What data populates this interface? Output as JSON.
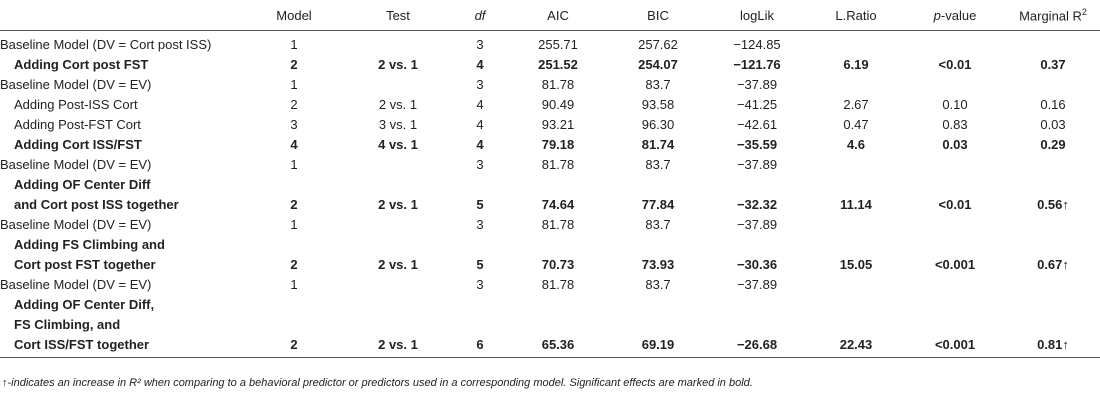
{
  "header": {
    "col1": "",
    "model": "Model",
    "test": "Test",
    "df": "df",
    "aic": "AIC",
    "bic": "BIC",
    "loglik": "logLik",
    "lratio": "L.Ratio",
    "pvalue_p": "p",
    "pvalue_rest": "-value",
    "marginal": "Marginal R",
    "marginal_sup": "2"
  },
  "rows": [
    {
      "label": [
        "Baseline Model (DV = Cort post ISS)"
      ],
      "model": "1",
      "test": "",
      "df": "3",
      "aic": "255.71",
      "bic": "257.62",
      "loglik": "−124.85",
      "lratio": "",
      "p": "",
      "r2": "",
      "bold": false,
      "indent": false
    },
    {
      "label": [
        "Adding Cort post FST"
      ],
      "model": "2",
      "test": "2 vs. 1",
      "df": "4",
      "aic": "251.52",
      "bic": "254.07",
      "loglik": "−121.76",
      "lratio": "6.19",
      "p": "<0.01",
      "r2": "0.37",
      "bold": true,
      "indent": true
    },
    {
      "label": [
        "Baseline Model (DV = EV)"
      ],
      "model": "1",
      "test": "",
      "df": "3",
      "aic": "81.78",
      "bic": "83.7",
      "loglik": "−37.89",
      "lratio": "",
      "p": "",
      "r2": "",
      "bold": false,
      "indent": false
    },
    {
      "label": [
        "Adding Post-ISS Cort"
      ],
      "model": "2",
      "test": "2 vs. 1",
      "df": "4",
      "aic": "90.49",
      "bic": "93.58",
      "loglik": "−41.25",
      "lratio": "2.67",
      "p": "0.10",
      "r2": "0.16",
      "bold": false,
      "indent": true
    },
    {
      "label": [
        "Adding Post-FST Cort"
      ],
      "model": "3",
      "test": "3 vs. 1",
      "df": "4",
      "aic": "93.21",
      "bic": "96.30",
      "loglik": "−42.61",
      "lratio": "0.47",
      "p": "0.83",
      "r2": "0.03",
      "bold": false,
      "indent": true
    },
    {
      "label": [
        "Adding Cort ISS/FST"
      ],
      "model": "4",
      "test": "4 vs. 1",
      "df": "4",
      "aic": "79.18",
      "bic": "81.74",
      "loglik": "−35.59",
      "lratio": "4.6",
      "p": "0.03",
      "r2": "0.29",
      "bold": true,
      "indent": true
    },
    {
      "label": [
        "Baseline Model (DV = EV)"
      ],
      "model": "1",
      "test": "",
      "df": "3",
      "aic": "81.78",
      "bic": "83.7",
      "loglik": "−37.89",
      "lratio": "",
      "p": "",
      "r2": "",
      "bold": false,
      "indent": false
    },
    {
      "label": [
        "Adding OF Center Diff",
        "and Cort post ISS together"
      ],
      "model": "2",
      "test": "2 vs. 1",
      "df": "5",
      "aic": "74.64",
      "bic": "77.84",
      "loglik": "−32.32",
      "lratio": "11.14",
      "p": "<0.01",
      "r2": "0.56↑",
      "bold": true,
      "indent": true
    },
    {
      "label": [
        "Baseline Model (DV = EV)"
      ],
      "model": "1",
      "test": "",
      "df": "3",
      "aic": "81.78",
      "bic": "83.7",
      "loglik": "−37.89",
      "lratio": "",
      "p": "",
      "r2": "",
      "bold": false,
      "indent": false
    },
    {
      "label": [
        "Adding FS Climbing and",
        "Cort post FST together"
      ],
      "model": "2",
      "test": "2 vs. 1",
      "df": "5",
      "aic": "70.73",
      "bic": "73.93",
      "loglik": "−30.36",
      "lratio": "15.05",
      "p": "<0.001",
      "r2": "0.67↑",
      "bold": true,
      "indent": true
    },
    {
      "label": [
        "Baseline Model (DV = EV)"
      ],
      "model": "1",
      "test": "",
      "df": "3",
      "aic": "81.78",
      "bic": "83.7",
      "loglik": "−37.89",
      "lratio": "",
      "p": "",
      "r2": "",
      "bold": false,
      "indent": false
    },
    {
      "label": [
        "Adding OF Center Diff,",
        "FS Climbing, and",
        "Cort ISS/FST together"
      ],
      "model": "2",
      "test": "2 vs. 1",
      "df": "6",
      "aic": "65.36",
      "bic": "69.19",
      "loglik": "−26.68",
      "lratio": "22.43",
      "p": "<0.001",
      "r2": "0.81↑",
      "bold": true,
      "indent": true
    }
  ],
  "footnote": "↑-indicates an increase in R² when comparing to a behavioral predictor or predictors used in a corresponding model. Significant effects are marked in bold."
}
